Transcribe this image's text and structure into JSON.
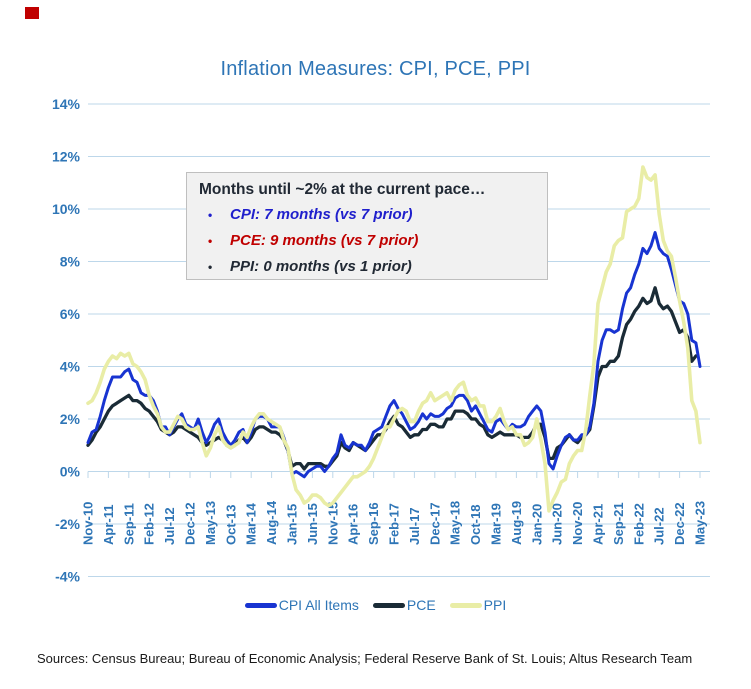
{
  "logo": {
    "color": "#C00000"
  },
  "title": "Inflation Measures: CPI, PCE, PPI",
  "annotation": {
    "header": "Months until ~2% at the current pace…",
    "items": [
      {
        "label": "CPI: 7 months (vs 7 prior)",
        "color": "#1F1FCC"
      },
      {
        "label": "PCE: 9 months (vs 7 prior)",
        "color": "#C00000"
      },
      {
        "label": "PPI: 0 months (vs 1 prior)",
        "color": "#212934"
      }
    ]
  },
  "footer": {
    "sources": "Sources: Census Bureau; Bureau of Economic Analysis; Federal Reserve Bank of St. Louis; Altus Research Team"
  },
  "colors": {
    "axis_label": "#2E75B6",
    "gridline": "#BDD7EA",
    "annotation_bg": "#F1F1F1",
    "title": "#2E75B6"
  },
  "chart_data": {
    "type": "line",
    "title": "Inflation Measures: CPI, PCE, PPI",
    "x_unit": "month",
    "x_start": "Nov-10",
    "x_end": "May-23",
    "x_tick_interval_months": 5,
    "x_tick_labels": [
      "Nov-10",
      "Apr-11",
      "Sep-11",
      "Feb-12",
      "Jul-12",
      "Dec-12",
      "May-13",
      "Oct-13",
      "Mar-14",
      "Aug-14",
      "Jan-15",
      "Jun-15",
      "Nov-15",
      "Apr-16",
      "Sep-16",
      "Feb-17",
      "Jul-17",
      "Dec-17",
      "May-18",
      "Oct-18",
      "Mar-19",
      "Aug-19",
      "Jan-20",
      "Jun-20",
      "Nov-20",
      "Apr-21",
      "Sep-21",
      "Feb-22",
      "Jul-22",
      "Dec-22",
      "May-23"
    ],
    "ylim": [
      -4,
      14
    ],
    "y_ticks": [
      14,
      12,
      10,
      8,
      6,
      4,
      2,
      0,
      -2,
      -4
    ],
    "y_tick_suffix": "%",
    "grid": true,
    "legend_position": "bottom",
    "series": [
      {
        "name": "CPI All Items",
        "color": "#1834D1",
        "stroke_width": 3,
        "values": [
          1.1,
          1.5,
          1.6,
          2.1,
          2.7,
          3.2,
          3.6,
          3.6,
          3.6,
          3.8,
          3.9,
          3.5,
          3.4,
          3.0,
          2.9,
          2.9,
          2.7,
          2.3,
          1.7,
          1.7,
          1.4,
          1.7,
          2.0,
          2.2,
          1.8,
          1.7,
          1.6,
          2.0,
          1.5,
          1.1,
          1.4,
          1.8,
          2.0,
          1.5,
          1.2,
          1.0,
          1.2,
          1.5,
          1.6,
          1.1,
          1.5,
          2.0,
          2.1,
          2.1,
          2.0,
          1.7,
          1.7,
          1.7,
          1.3,
          0.8,
          -0.1,
          0.0,
          -0.1,
          -0.2,
          0.0,
          0.1,
          0.2,
          0.2,
          0.0,
          0.2,
          0.5,
          0.7,
          1.4,
          1.0,
          0.9,
          1.1,
          1.0,
          1.0,
          0.8,
          1.1,
          1.5,
          1.6,
          1.7,
          2.1,
          2.5,
          2.7,
          2.4,
          2.2,
          1.9,
          1.6,
          1.7,
          1.9,
          2.2,
          2.0,
          2.2,
          2.1,
          2.1,
          2.2,
          2.4,
          2.5,
          2.8,
          2.9,
          2.9,
          2.7,
          2.3,
          2.5,
          2.2,
          1.9,
          1.6,
          1.5,
          1.9,
          2.0,
          1.8,
          1.6,
          1.8,
          1.7,
          1.7,
          1.8,
          2.1,
          2.3,
          2.5,
          2.3,
          1.5,
          0.3,
          0.1,
          0.6,
          1.0,
          1.3,
          1.4,
          1.2,
          1.2,
          1.4,
          1.4,
          1.7,
          2.6,
          4.2,
          5.0,
          5.4,
          5.4,
          5.3,
          5.4,
          6.2,
          6.8,
          7.0,
          7.5,
          7.9,
          8.5,
          8.3,
          8.6,
          9.1,
          8.5,
          8.3,
          8.2,
          7.7,
          7.1,
          6.5,
          6.4,
          6.0,
          5.0,
          4.9,
          4.0
        ]
      },
      {
        "name": "PCE",
        "color": "#1A2B36",
        "stroke_width": 3.3,
        "values": [
          1.0,
          1.2,
          1.5,
          1.7,
          2.0,
          2.3,
          2.5,
          2.6,
          2.7,
          2.8,
          2.9,
          2.7,
          2.7,
          2.6,
          2.4,
          2.3,
          2.1,
          1.9,
          1.6,
          1.5,
          1.4,
          1.5,
          1.7,
          1.7,
          1.6,
          1.5,
          1.4,
          1.3,
          1.1,
          1.0,
          1.1,
          1.2,
          1.3,
          1.2,
          1.0,
          0.9,
          1.0,
          1.2,
          1.3,
          1.1,
          1.3,
          1.6,
          1.7,
          1.7,
          1.6,
          1.5,
          1.5,
          1.4,
          1.2,
          0.8,
          0.2,
          0.3,
          0.3,
          0.1,
          0.3,
          0.3,
          0.3,
          0.3,
          0.2,
          0.2,
          0.4,
          0.6,
          1.1,
          0.9,
          0.8,
          1.1,
          1.0,
          0.9,
          0.8,
          1.0,
          1.2,
          1.4,
          1.4,
          1.6,
          1.9,
          2.1,
          1.8,
          1.7,
          1.5,
          1.3,
          1.4,
          1.4,
          1.6,
          1.6,
          1.8,
          1.8,
          1.7,
          1.7,
          2.0,
          2.0,
          2.3,
          2.3,
          2.3,
          2.2,
          2.0,
          2.0,
          1.8,
          1.7,
          1.4,
          1.3,
          1.4,
          1.5,
          1.4,
          1.4,
          1.4,
          1.4,
          1.3,
          1.3,
          1.3,
          1.5,
          1.8,
          1.8,
          1.3,
          0.5,
          0.5,
          0.9,
          1.0,
          1.2,
          1.4,
          1.2,
          1.1,
          1.3,
          1.4,
          1.6,
          2.5,
          3.6,
          4.0,
          4.0,
          4.2,
          4.2,
          4.4,
          5.1,
          5.6,
          5.8,
          6.1,
          6.3,
          6.6,
          6.4,
          6.5,
          7.0,
          6.4,
          6.2,
          6.3,
          6.1,
          5.7,
          5.3,
          5.4,
          5.1,
          4.2,
          4.4,
          null
        ]
      },
      {
        "name": "PPI",
        "color": "#E9EDA6",
        "stroke_width": 3.6,
        "values": [
          2.6,
          2.7,
          3.0,
          3.4,
          3.9,
          4.2,
          4.4,
          4.3,
          4.5,
          4.4,
          4.5,
          4.1,
          4.0,
          3.8,
          3.5,
          2.9,
          2.5,
          2.2,
          1.7,
          1.5,
          1.5,
          1.8,
          2.1,
          2.0,
          1.7,
          1.6,
          1.6,
          1.7,
          1.1,
          0.6,
          0.9,
          1.4,
          1.7,
          1.2,
          1.0,
          0.9,
          1.0,
          1.1,
          1.5,
          1.3,
          1.7,
          2.0,
          2.2,
          2.2,
          2.0,
          1.9,
          1.8,
          1.7,
          1.2,
          0.9,
          -0.1,
          -0.7,
          -0.9,
          -1.2,
          -1.1,
          -0.9,
          -0.9,
          -1.0,
          -1.2,
          -1.3,
          -1.2,
          -1.0,
          -0.8,
          -0.6,
          -0.4,
          -0.2,
          -0.2,
          -0.1,
          0.0,
          0.2,
          0.5,
          0.9,
          1.3,
          1.7,
          1.7,
          2.0,
          2.3,
          2.4,
          2.3,
          1.9,
          1.9,
          2.3,
          2.6,
          2.7,
          3.0,
          2.7,
          2.8,
          2.9,
          3.0,
          2.7,
          3.1,
          3.3,
          3.4,
          2.9,
          2.7,
          2.8,
          2.5,
          2.5,
          1.9,
          1.9,
          2.1,
          2.4,
          1.9,
          1.6,
          1.7,
          1.4,
          1.4,
          1.0,
          1.1,
          1.3,
          2.0,
          1.2,
          0.3,
          -1.5,
          -1.1,
          -0.8,
          -0.4,
          -0.3,
          0.3,
          0.6,
          0.8,
          0.8,
          1.6,
          2.9,
          4.1,
          6.4,
          7.0,
          7.6,
          7.9,
          8.6,
          8.8,
          8.9,
          9.9,
          10.0,
          10.1,
          10.4,
          11.6,
          11.2,
          11.1,
          11.3,
          9.8,
          8.8,
          8.4,
          8.2,
          7.4,
          6.5,
          5.7,
          4.7,
          2.7,
          2.3,
          1.1
        ]
      }
    ],
    "draw_order": [
      1,
      0,
      2
    ]
  }
}
